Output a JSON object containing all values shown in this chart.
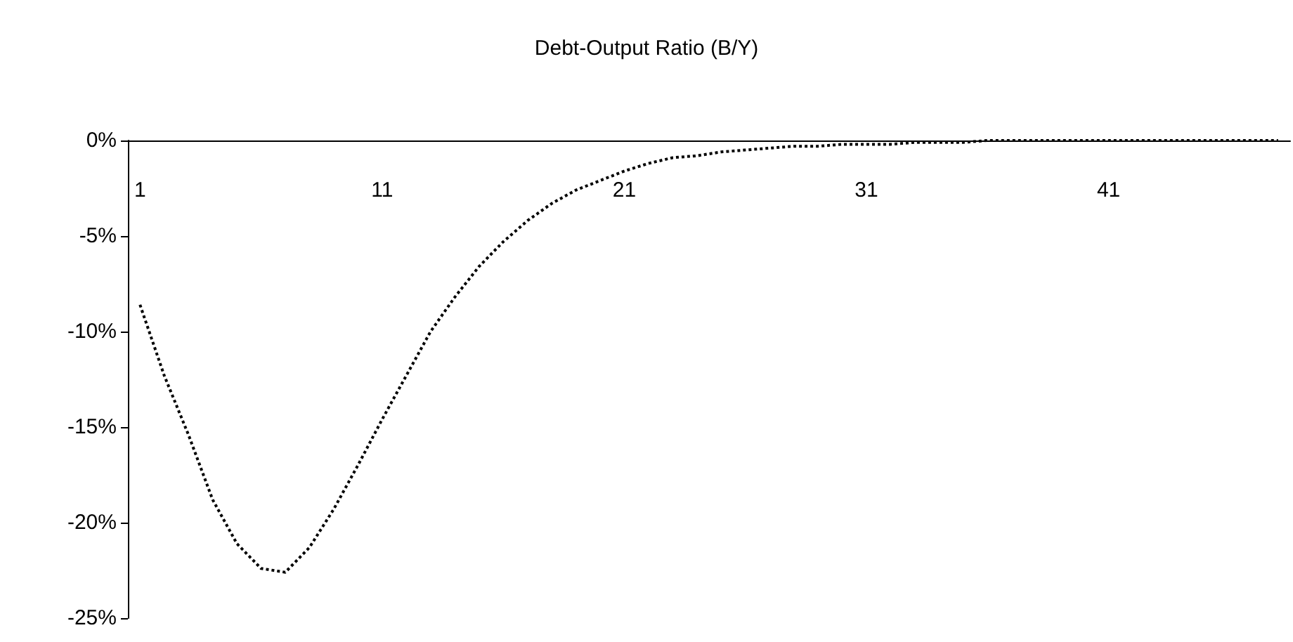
{
  "chart_data": {
    "type": "line",
    "title": "Debt-Output Ratio (B/Y)",
    "categories": [
      "1",
      null,
      null,
      null,
      null,
      null,
      null,
      null,
      null,
      null,
      "11",
      null,
      null,
      null,
      null,
      null,
      null,
      null,
      null,
      null,
      "21",
      null,
      null,
      null,
      null,
      null,
      null,
      null,
      null,
      null,
      "31",
      null,
      null,
      null,
      null,
      null,
      null,
      null,
      null,
      null,
      "41",
      null,
      null,
      null,
      null,
      null,
      null,
      null
    ],
    "series": [
      {
        "color": "#000000",
        "values": [
          -8.6,
          -12.3,
          -15.4,
          -18.8,
          -21.1,
          -22.4,
          -22.6,
          -21.3,
          -19.3,
          -17.0,
          -14.6,
          -12.3,
          -10.0,
          -8.2,
          -6.6,
          -5.3,
          -4.2,
          -3.3,
          -2.6,
          -2.1,
          -1.6,
          -1.2,
          -0.9,
          -0.8,
          -0.6,
          -0.5,
          -0.4,
          -0.3,
          -0.3,
          -0.2,
          -0.2,
          -0.2,
          -0.1,
          -0.1,
          -0.1,
          0,
          0,
          0,
          0,
          0,
          0,
          0,
          0,
          0,
          0,
          0,
          0,
          0
        ]
      }
    ],
    "ylim": [
      -25,
      0
    ],
    "yticks": [
      {
        "value": -25,
        "label": "-25%"
      },
      {
        "value": -20,
        "label": "-20%"
      },
      {
        "value": -15,
        "label": "-15%"
      },
      {
        "value": -10,
        "label": "-10%"
      },
      {
        "value": -5,
        "label": "-5%"
      },
      {
        "value": 0,
        "label": "0%"
      }
    ],
    "grid": false,
    "marker": "none",
    "line_style": "dotted"
  }
}
